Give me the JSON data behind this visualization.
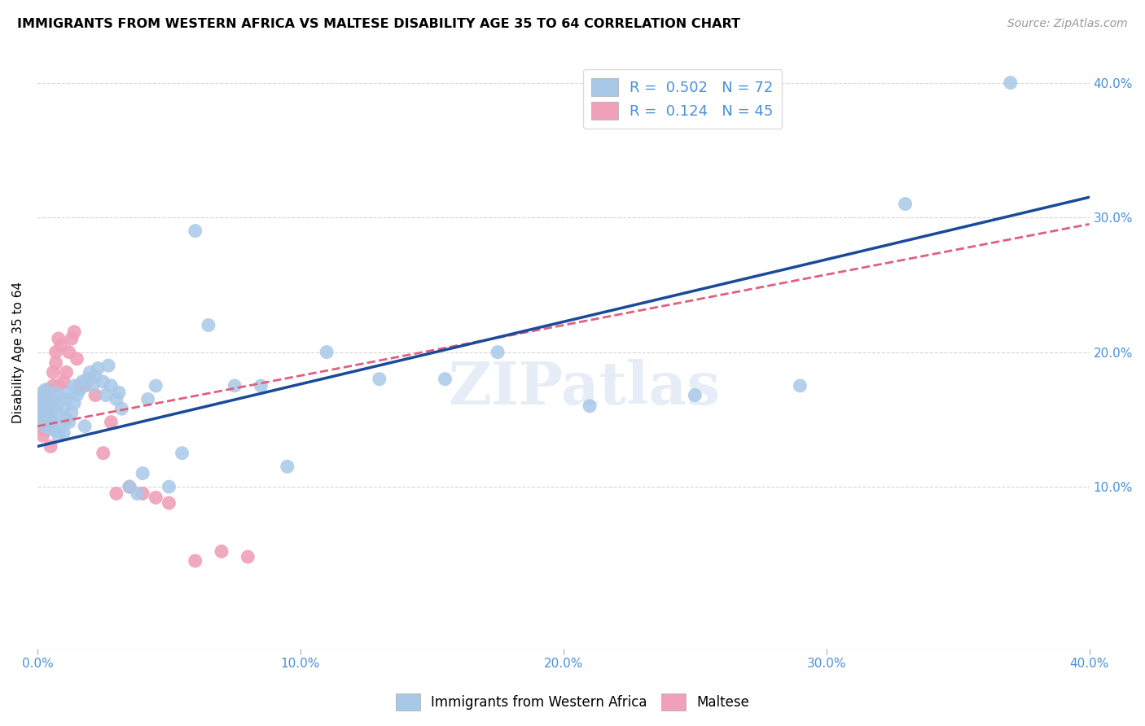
{
  "title": "IMMIGRANTS FROM WESTERN AFRICA VS MALTESE DISABILITY AGE 35 TO 64 CORRELATION CHART",
  "source": "Source: ZipAtlas.com",
  "ylabel": "Disability Age 35 to 64",
  "xlim": [
    0.0,
    0.4
  ],
  "ylim": [
    -0.02,
    0.42
  ],
  "xtick_labels": [
    "0.0%",
    "10.0%",
    "20.0%",
    "30.0%",
    "40.0%"
  ],
  "xtick_vals": [
    0.0,
    0.1,
    0.2,
    0.3,
    0.4
  ],
  "ytick_vals": [
    0.1,
    0.2,
    0.3,
    0.4
  ],
  "right_ytick_labels": [
    "10.0%",
    "20.0%",
    "30.0%",
    "40.0%"
  ],
  "right_ytick_vals": [
    0.1,
    0.2,
    0.3,
    0.4
  ],
  "legend_R_blue": "0.502",
  "legend_N_blue": "72",
  "legend_R_pink": "0.124",
  "legend_N_pink": "45",
  "blue_color": "#a8c8e8",
  "pink_color": "#f0a0b8",
  "line_blue_color": "#1a4a99",
  "line_pink_color": "#e06080",
  "watermark": "ZIPatlas",
  "blue_scatter_x": [
    0.001,
    0.001,
    0.001,
    0.002,
    0.002,
    0.002,
    0.002,
    0.003,
    0.003,
    0.003,
    0.003,
    0.004,
    0.004,
    0.004,
    0.005,
    0.005,
    0.005,
    0.006,
    0.006,
    0.007,
    0.007,
    0.007,
    0.008,
    0.008,
    0.009,
    0.009,
    0.01,
    0.01,
    0.011,
    0.011,
    0.012,
    0.012,
    0.013,
    0.014,
    0.014,
    0.015,
    0.016,
    0.017,
    0.018,
    0.019,
    0.02,
    0.021,
    0.022,
    0.023,
    0.025,
    0.026,
    0.027,
    0.028,
    0.03,
    0.031,
    0.032,
    0.035,
    0.038,
    0.04,
    0.042,
    0.045,
    0.05,
    0.055,
    0.06,
    0.065,
    0.075,
    0.085,
    0.095,
    0.11,
    0.13,
    0.155,
    0.175,
    0.21,
    0.25,
    0.29,
    0.33,
    0.37
  ],
  "blue_scatter_y": [
    0.15,
    0.16,
    0.165,
    0.148,
    0.155,
    0.162,
    0.17,
    0.145,
    0.155,
    0.165,
    0.172,
    0.15,
    0.158,
    0.168,
    0.143,
    0.152,
    0.162,
    0.148,
    0.165,
    0.142,
    0.158,
    0.17,
    0.138,
    0.155,
    0.145,
    0.165,
    0.14,
    0.158,
    0.15,
    0.165,
    0.148,
    0.17,
    0.155,
    0.162,
    0.175,
    0.168,
    0.172,
    0.178,
    0.145,
    0.18,
    0.185,
    0.175,
    0.182,
    0.188,
    0.178,
    0.168,
    0.19,
    0.175,
    0.165,
    0.17,
    0.158,
    0.1,
    0.095,
    0.11,
    0.165,
    0.175,
    0.1,
    0.125,
    0.29,
    0.22,
    0.175,
    0.175,
    0.115,
    0.2,
    0.18,
    0.18,
    0.2,
    0.16,
    0.168,
    0.175,
    0.31,
    0.4
  ],
  "pink_scatter_x": [
    0.001,
    0.001,
    0.001,
    0.001,
    0.002,
    0.002,
    0.002,
    0.002,
    0.003,
    0.003,
    0.003,
    0.003,
    0.004,
    0.004,
    0.004,
    0.005,
    0.005,
    0.005,
    0.006,
    0.006,
    0.007,
    0.007,
    0.008,
    0.008,
    0.009,
    0.01,
    0.011,
    0.012,
    0.013,
    0.014,
    0.015,
    0.016,
    0.018,
    0.02,
    0.022,
    0.025,
    0.028,
    0.03,
    0.035,
    0.04,
    0.045,
    0.05,
    0.06,
    0.07,
    0.08
  ],
  "pink_scatter_y": [
    0.145,
    0.15,
    0.155,
    0.162,
    0.138,
    0.148,
    0.158,
    0.165,
    0.142,
    0.15,
    0.158,
    0.165,
    0.172,
    0.145,
    0.155,
    0.13,
    0.148,
    0.162,
    0.175,
    0.185,
    0.192,
    0.2,
    0.175,
    0.21,
    0.205,
    0.178,
    0.185,
    0.2,
    0.21,
    0.215,
    0.195,
    0.175,
    0.175,
    0.18,
    0.168,
    0.125,
    0.148,
    0.095,
    0.1,
    0.095,
    0.092,
    0.088,
    0.045,
    0.052,
    0.048
  ],
  "blue_line_x": [
    0.0,
    0.4
  ],
  "blue_line_y": [
    0.13,
    0.315
  ],
  "pink_line_x": [
    0.0,
    0.4
  ],
  "pink_line_y": [
    0.145,
    0.295
  ]
}
